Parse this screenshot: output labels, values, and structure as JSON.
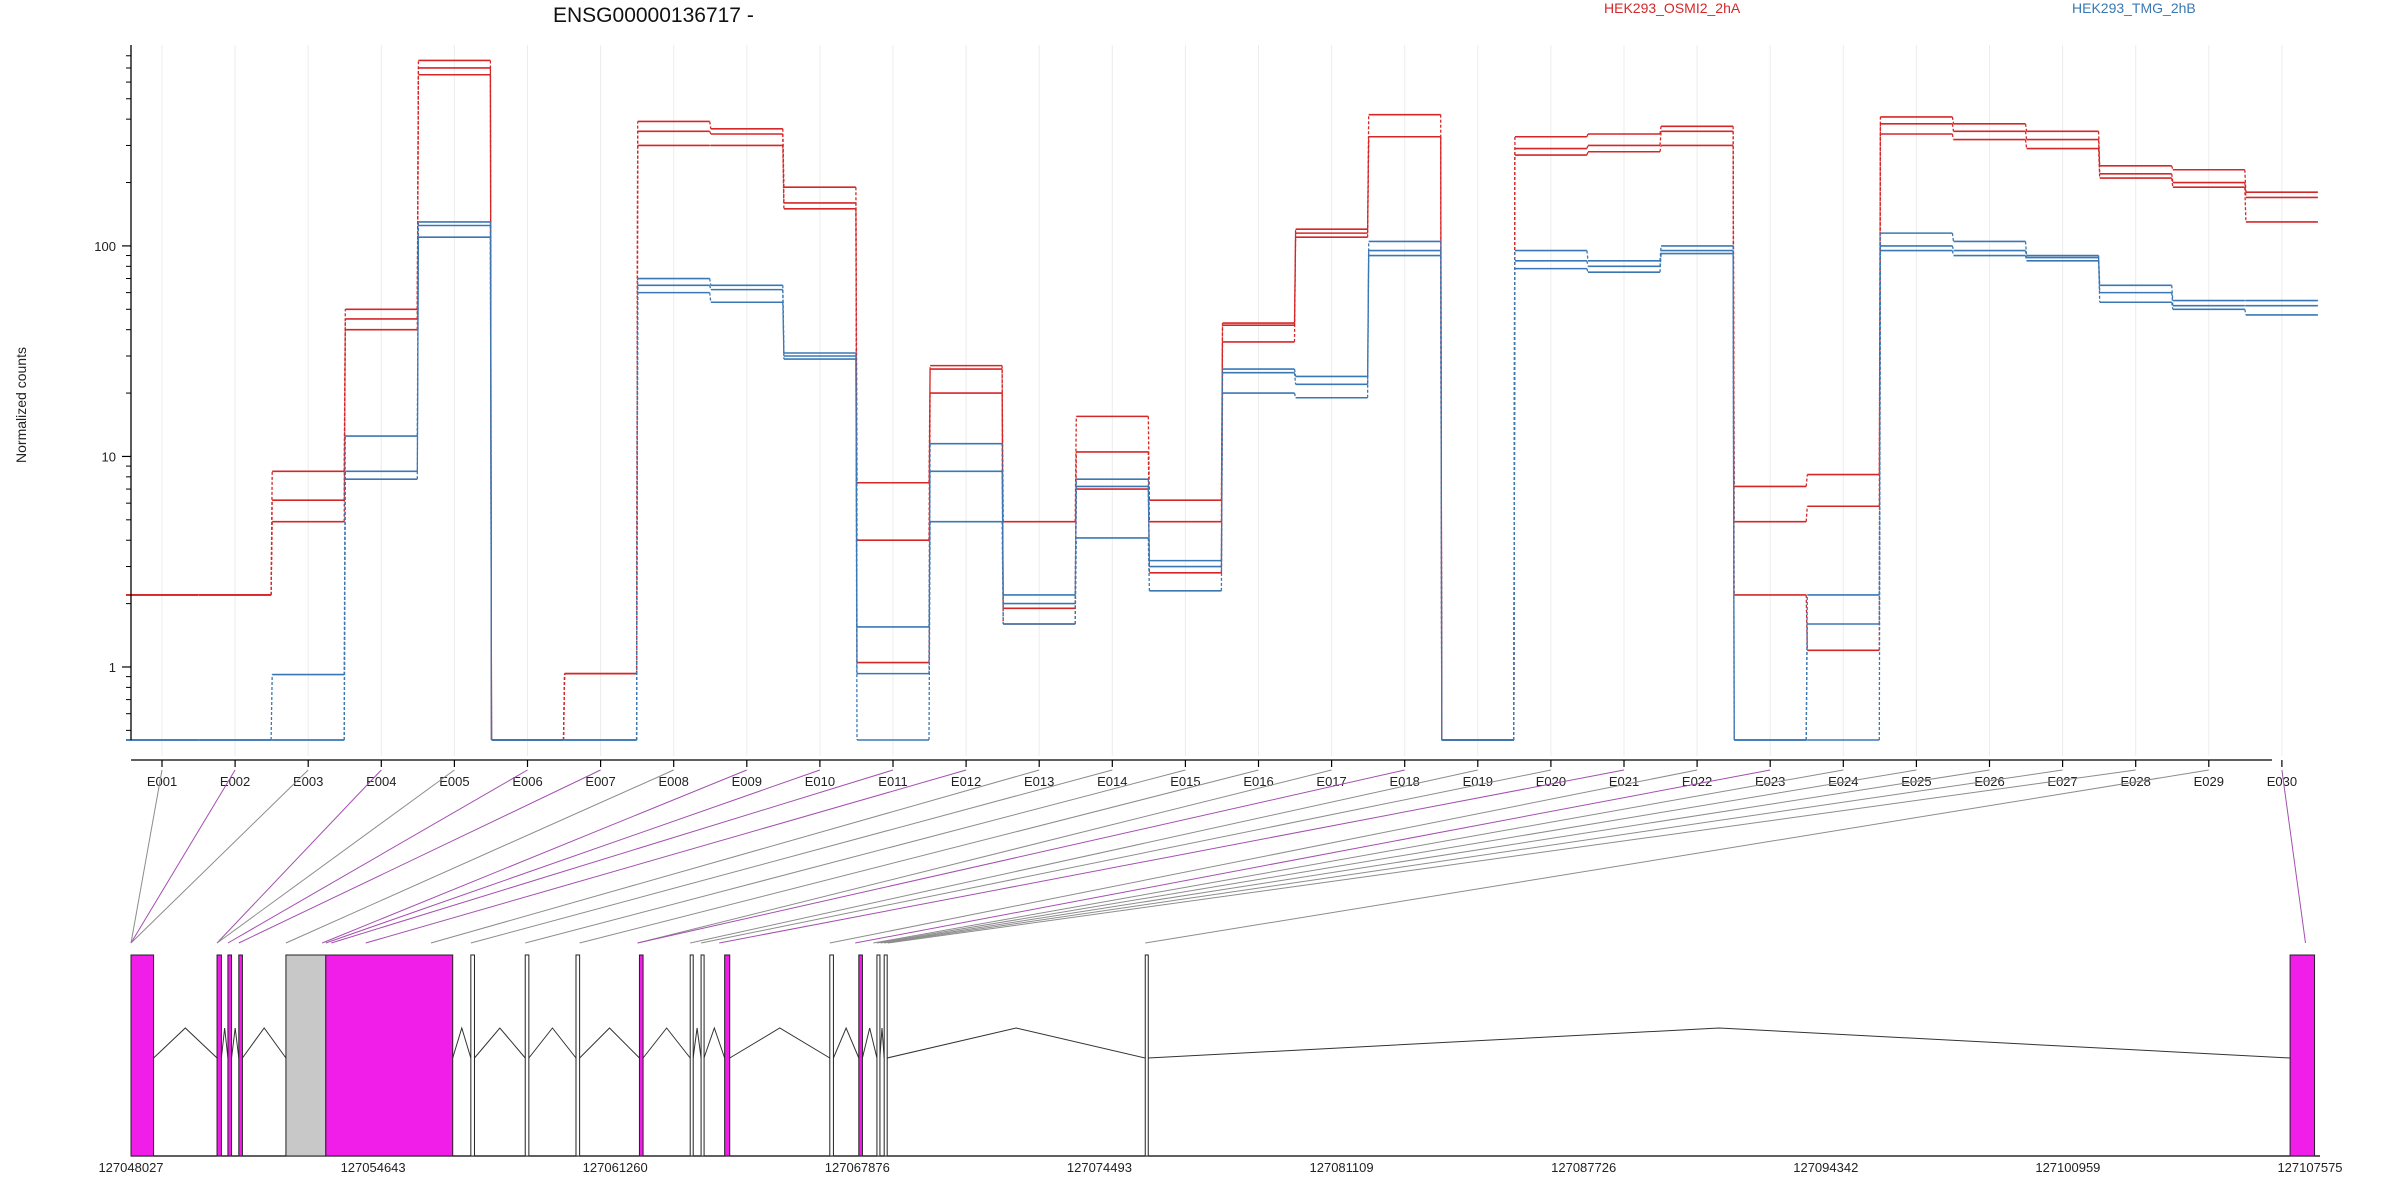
{
  "chart_data": {
    "type": "line",
    "title": "ENSG00000136717 -",
    "xlabel": "",
    "ylabel": "Normalized counts",
    "yscale": "log",
    "ylim": [
      0.45,
      900
    ],
    "yticks": [
      {
        "value": 1,
        "label": "1"
      },
      {
        "value": 10,
        "label": "10"
      },
      {
        "value": 100,
        "label": "100"
      }
    ],
    "grid": "vertical",
    "legend": [
      {
        "name": "HEK293_OSMI2_2hA",
        "color": "#d62728",
        "position": "top-right"
      },
      {
        "name": "HEK293_TMG_2hB",
        "color": "#3a78b5",
        "position": "top-right"
      }
    ],
    "categories": [
      "E001",
      "E002",
      "E003",
      "E004",
      "E005",
      "E006",
      "E007",
      "E008",
      "E009",
      "E010",
      "E011",
      "E012",
      "E013",
      "E014",
      "E015",
      "E016",
      "E017",
      "E018",
      "E019",
      "E020",
      "E021",
      "E022",
      "E023",
      "E024",
      "E025",
      "E026",
      "E027",
      "E028",
      "E029",
      "E030"
    ],
    "series": [
      {
        "group": "HEK293_OSMI2_2hA",
        "color": "#d62728",
        "values": [
          2.2,
          2.2,
          8.5,
          50,
          760,
          0.45,
          0.93,
          390,
          360,
          190,
          7.5,
          26,
          4.9,
          15.5,
          6.2,
          43,
          120,
          420,
          0.45,
          330,
          340,
          370,
          7.2,
          8.2,
          410,
          380,
          350,
          240,
          230,
          180
        ]
      },
      {
        "group": "HEK293_OSMI2_2hA",
        "color": "#d62728",
        "values": [
          2.2,
          2.2,
          6.2,
          45,
          700,
          0.45,
          0.93,
          350,
          340,
          160,
          4.0,
          27,
          1.9,
          10.5,
          4.9,
          42,
          115,
          330,
          0.45,
          290,
          300,
          350,
          4.9,
          5.8,
          380,
          350,
          320,
          220,
          200,
          170
        ]
      },
      {
        "group": "HEK293_OSMI2_2hA",
        "color": "#d62728",
        "values": [
          2.2,
          2.2,
          4.9,
          40,
          650,
          0.45,
          0.93,
          300,
          300,
          150,
          1.05,
          20,
          1.6,
          7.0,
          2.8,
          35,
          110,
          330,
          0.45,
          270,
          280,
          300,
          2.2,
          1.2,
          340,
          320,
          290,
          210,
          190,
          130
        ]
      },
      {
        "group": "HEK293_TMG_2hB",
        "color": "#3a78b5",
        "values": [
          0.45,
          0.45,
          0.92,
          12.5,
          130,
          0.45,
          0.45,
          70,
          65,
          31,
          1.55,
          11.5,
          2.2,
          7.8,
          3.2,
          26,
          24,
          105,
          0.45,
          95,
          85,
          100,
          0.45,
          2.2,
          115,
          105,
          90,
          65,
          55,
          55
        ]
      },
      {
        "group": "HEK293_TMG_2hB",
        "color": "#3a78b5",
        "values": [
          0.45,
          0.45,
          0.45,
          8.5,
          125,
          0.45,
          0.45,
          65,
          62,
          30,
          0.93,
          8.5,
          2.0,
          7.2,
          3.0,
          25,
          22,
          95,
          0.45,
          85,
          80,
          95,
          0.45,
          1.6,
          100,
          95,
          88,
          60,
          52,
          52
        ]
      },
      {
        "group": "HEK293_TMG_2hB",
        "color": "#3a78b5",
        "values": [
          0.45,
          0.45,
          0.45,
          7.8,
          110,
          0.45,
          0.45,
          60,
          54,
          29,
          0.45,
          4.9,
          1.6,
          4.1,
          2.3,
          20,
          19,
          90,
          0.45,
          78,
          75,
          92,
          0.45,
          0.45,
          95,
          90,
          85,
          54,
          50,
          47
        ]
      }
    ],
    "gene_model": {
      "coordinate_ticks": [
        "127048027",
        "127054643",
        "127061260",
        "127067876",
        "127074493",
        "127081109",
        "127087726",
        "127094342",
        "127100959",
        "127107575"
      ],
      "range": [
        127048027,
        127108400
      ],
      "exons": [
        {
          "start": 127048027,
          "end": 127048650,
          "color": "magenta"
        },
        {
          "start": 127050400,
          "end": 127050520,
          "color": "magenta"
        },
        {
          "start": 127050700,
          "end": 127050800,
          "color": "magenta"
        },
        {
          "start": 127051000,
          "end": 127051100,
          "color": "magenta"
        },
        {
          "start": 127052300,
          "end": 127053400,
          "color": "grey"
        },
        {
          "start": 127053400,
          "end": 127056900,
          "color": "magenta"
        },
        {
          "start": 127057400,
          "end": 127057500,
          "color": "white"
        },
        {
          "start": 127058900,
          "end": 127059000,
          "color": "white"
        },
        {
          "start": 127060300,
          "end": 127060400,
          "color": "white"
        },
        {
          "start": 127062050,
          "end": 127062150,
          "color": "magenta"
        },
        {
          "start": 127063450,
          "end": 127063530,
          "color": "white"
        },
        {
          "start": 127063750,
          "end": 127063830,
          "color": "white"
        },
        {
          "start": 127064400,
          "end": 127064540,
          "color": "magenta"
        },
        {
          "start": 127067300,
          "end": 127067400,
          "color": "white"
        },
        {
          "start": 127068100,
          "end": 127068200,
          "color": "magenta"
        },
        {
          "start": 127068600,
          "end": 127068680,
          "color": "white"
        },
        {
          "start": 127068800,
          "end": 127068880,
          "color": "white"
        },
        {
          "start": 127076000,
          "end": 127076080,
          "color": "white"
        },
        {
          "start": 127107575,
          "end": 127108250,
          "color": "magenta"
        }
      ],
      "connector_starts": [
        127048027,
        127048027,
        127048027,
        127050400,
        127050400,
        127050700,
        127051000,
        127052300,
        127053300,
        127053400,
        127053550,
        127054500,
        127056300,
        127057400,
        127058900,
        127060400,
        127062000,
        127062000,
        127063450,
        127063750,
        127064250,
        127067300,
        127068000,
        127068500,
        127068600,
        127068700,
        127068800,
        127068900,
        127076000,
        127108000
      ],
      "connector_colors": [
        "grey",
        "magenta",
        "grey",
        "magenta",
        "grey",
        "magenta",
        "magenta",
        "grey",
        "magenta",
        "magenta",
        "magenta",
        "magenta",
        "grey",
        "grey",
        "grey",
        "grey",
        "grey",
        "magenta",
        "grey",
        "grey",
        "magenta",
        "grey",
        "magenta",
        "grey",
        "grey",
        "grey",
        "grey",
        "grey",
        "grey",
        "magenta"
      ]
    }
  }
}
